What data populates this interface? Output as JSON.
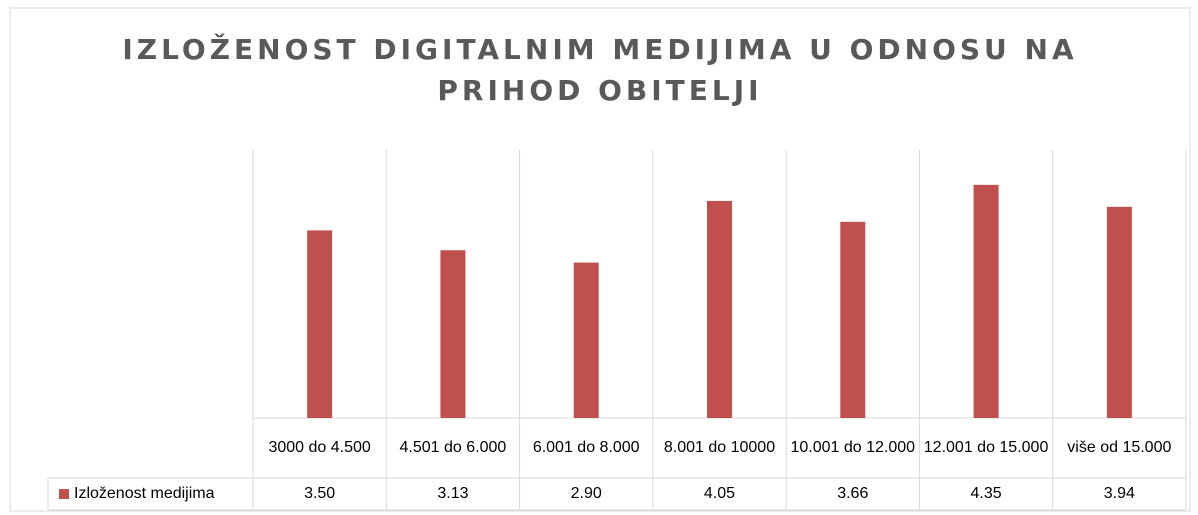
{
  "chart_data": {
    "type": "bar",
    "title": "IZLOŽENOST DIGITALNIM MEDIJIMA U ODNOSU NA PRIHOD OBITELJI",
    "categories": [
      "3000 do 4.500",
      "4.501 do 6.000",
      "6.001 do 8.000",
      "8.001 do 10000",
      "10.001 do 12.000",
      "12.001 do 15.000",
      "više od 15.000"
    ],
    "series": [
      {
        "name": "Izloženost medijima",
        "color": "#c0504d",
        "values": [
          3.5,
          3.13,
          2.9,
          4.05,
          3.66,
          4.35,
          3.94
        ],
        "value_labels": [
          "3.50",
          "3.13",
          "2.90",
          "4.05",
          "3.66",
          "4.35",
          "3.94"
        ]
      }
    ],
    "ylim": [
      0,
      5
    ],
    "grid": true
  }
}
